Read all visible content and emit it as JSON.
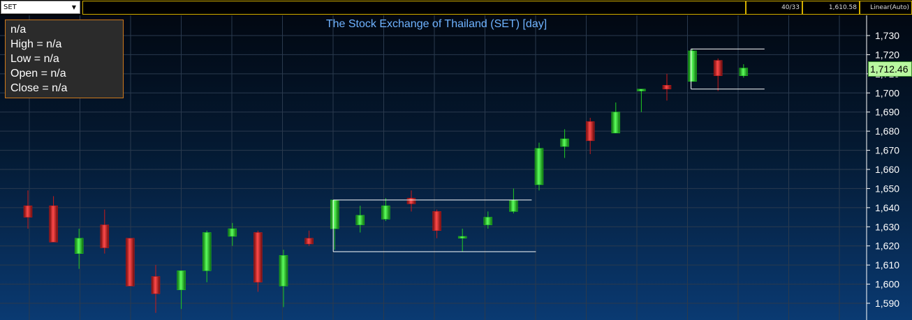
{
  "toolbar": {
    "symbol": "SET",
    "counter": "40/33",
    "value": "1,610.58",
    "scale_mode": "Linear(Auto)"
  },
  "info": {
    "label": "n/a",
    "high": "High  = n/a",
    "low": "Low  = n/a",
    "open": "Open  = n/a",
    "close": "Close  = n/a"
  },
  "last_price_label": "1,712.46",
  "colors": {
    "up": "#22cc22",
    "down": "#cc1a1a",
    "title": "#6fb3ff"
  },
  "chart_data": {
    "type": "candlestick",
    "title": "The Stock Exchange of Thailand (SET) [day]",
    "ylim": [
      1578,
      1738
    ],
    "yticks": [
      1590,
      1600,
      1610,
      1620,
      1630,
      1640,
      1650,
      1660,
      1670,
      1680,
      1690,
      1700,
      1710,
      1720,
      1730
    ],
    "ytick_labels": [
      "1,590",
      "1,600",
      "1,610",
      "1,620",
      "1,630",
      "1,640",
      "1,650",
      "1,660",
      "1,670",
      "1,680",
      "1,690",
      "1,700",
      "1,710",
      "1,720",
      "1,730"
    ],
    "axis_side": "right",
    "grid": true,
    "last_price": 1712.46,
    "candles": [
      {
        "o": 1641,
        "h": 1649,
        "l": 1629,
        "c": 1635
      },
      {
        "o": 1641,
        "h": 1646,
        "l": 1622,
        "c": 1622
      },
      {
        "o": 1616,
        "h": 1629,
        "l": 1608,
        "c": 1624
      },
      {
        "o": 1631,
        "h": 1639,
        "l": 1616,
        "c": 1619
      },
      {
        "o": 1624,
        "h": 1624,
        "l": 1599,
        "c": 1599
      },
      {
        "o": 1604,
        "h": 1610,
        "l": 1585,
        "c": 1595
      },
      {
        "o": 1597,
        "h": 1607,
        "l": 1587,
        "c": 1607
      },
      {
        "o": 1607,
        "h": 1628,
        "l": 1601,
        "c": 1627
      },
      {
        "o": 1625,
        "h": 1632,
        "l": 1620,
        "c": 1629
      },
      {
        "o": 1627,
        "h": 1628,
        "l": 1596,
        "c": 1601
      },
      {
        "o": 1599,
        "h": 1618,
        "l": 1588,
        "c": 1615
      },
      {
        "o": 1624,
        "h": 1628,
        "l": 1620,
        "c": 1621
      },
      {
        "o": 1629,
        "h": 1644,
        "l": 1618,
        "c": 1644
      },
      {
        "o": 1631,
        "h": 1641,
        "l": 1627,
        "c": 1636
      },
      {
        "o": 1634,
        "h": 1645,
        "l": 1633,
        "c": 1641
      },
      {
        "o": 1645,
        "h": 1649,
        "l": 1638,
        "c": 1642
      },
      {
        "o": 1638,
        "h": 1639,
        "l": 1624,
        "c": 1628
      },
      {
        "o": 1624,
        "h": 1629,
        "l": 1617,
        "c": 1625
      },
      {
        "o": 1631,
        "h": 1638,
        "l": 1629,
        "c": 1635
      },
      {
        "o": 1638,
        "h": 1650,
        "l": 1637,
        "c": 1644
      },
      {
        "o": 1652,
        "h": 1674,
        "l": 1649,
        "c": 1671
      },
      {
        "o": 1672,
        "h": 1681,
        "l": 1666,
        "c": 1676
      },
      {
        "o": 1685,
        "h": 1687,
        "l": 1668,
        "c": 1675
      },
      {
        "o": 1679,
        "h": 1695,
        "l": 1679,
        "c": 1690
      },
      {
        "o": 1701,
        "h": 1702,
        "l": 1690,
        "c": 1702
      },
      {
        "o": 1704,
        "h": 1710,
        "l": 1696,
        "c": 1702
      },
      {
        "o": 1706,
        "h": 1723,
        "l": 1706,
        "c": 1722
      },
      {
        "o": 1717,
        "h": 1718,
        "l": 1701,
        "c": 1709
      },
      {
        "o": 1709,
        "h": 1715,
        "l": 1708,
        "c": 1713
      }
    ],
    "annotations": [
      {
        "type": "range-box",
        "from_index": 12,
        "to_index": 19,
        "top": 1644,
        "bottom": 1617
      },
      {
        "type": "range-box",
        "from_index": 26,
        "to_index": 28,
        "top": 1723,
        "bottom": 1702
      }
    ]
  }
}
